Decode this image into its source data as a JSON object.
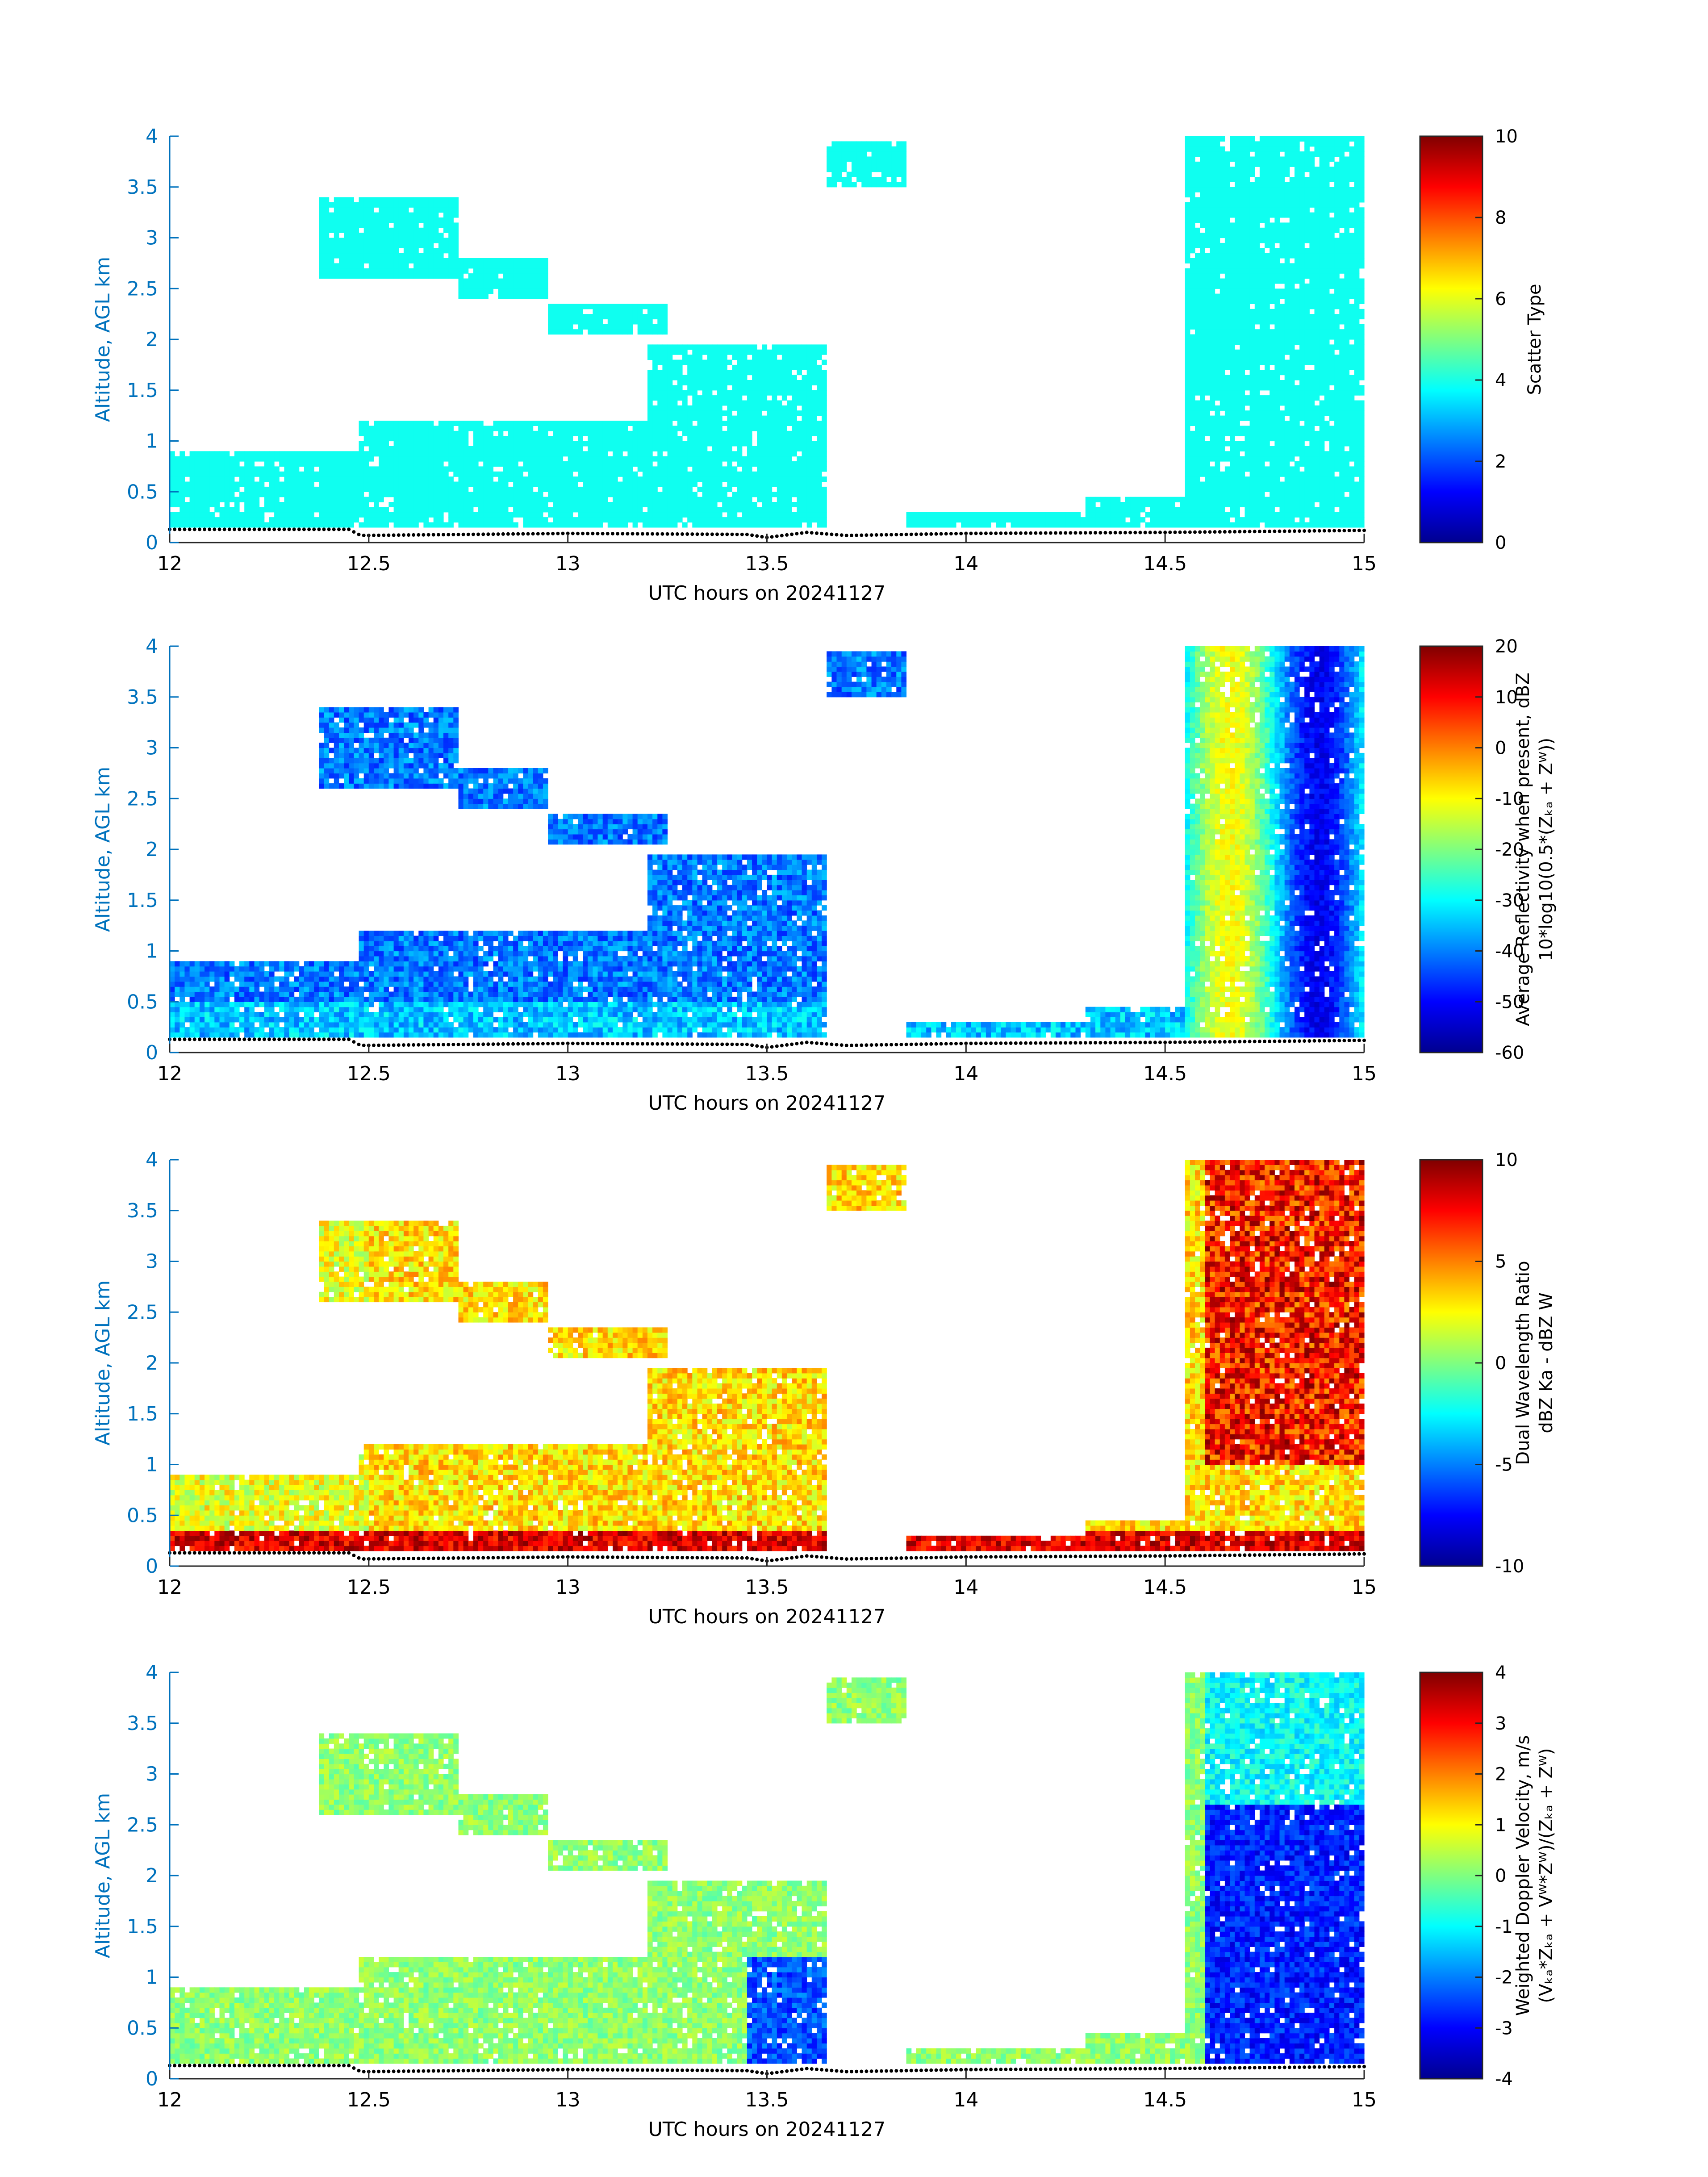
{
  "chart_data": [
    {
      "type": "heatmap",
      "xlabel": "UTC hours on 20241127",
      "ylabel": "Altitude, AGL km",
      "xlim": [
        12,
        15
      ],
      "ylim": [
        0,
        4
      ],
      "xticks": [
        "12",
        "12.5",
        "13",
        "13.5",
        "14",
        "14.5",
        "15"
      ],
      "yticks": [
        "0",
        "0.5",
        "1",
        "1.5",
        "2",
        "2.5",
        "3",
        "3.5",
        "4"
      ],
      "colorbar": {
        "label_lines": [
          "Scatter Type"
        ],
        "ticks": [
          "0",
          "2",
          "4",
          "6",
          "8",
          "10"
        ],
        "range": [
          0,
          10
        ],
        "colormap": "jet"
      },
      "field": "scatter_type",
      "dominant_value": 3.9
    },
    {
      "type": "heatmap",
      "xlabel": "UTC hours on 20241127",
      "ylabel": "Altitude, AGL km",
      "xlim": [
        12,
        15
      ],
      "ylim": [
        0,
        4
      ],
      "xticks": [
        "12",
        "12.5",
        "13",
        "13.5",
        "14",
        "14.5",
        "15"
      ],
      "yticks": [
        "0",
        "0.5",
        "1",
        "1.5",
        "2",
        "2.5",
        "3",
        "3.5",
        "4"
      ],
      "colorbar": {
        "label_lines": [
          "Average Reflectivity when present, dBZ",
          "10*log10(0.5*(Zₖₐ + Zᵂ))"
        ],
        "ticks": [
          "-60",
          "-50",
          "-40",
          "-30",
          "-20",
          "-10",
          "0",
          "10",
          "20"
        ],
        "range": [
          -60,
          20
        ],
        "colormap": "jet"
      },
      "field": "reflectivity"
    },
    {
      "type": "heatmap",
      "xlabel": "UTC hours on 20241127",
      "ylabel": "Altitude, AGL km",
      "xlim": [
        12,
        15
      ],
      "ylim": [
        0,
        4
      ],
      "xticks": [
        "12",
        "12.5",
        "13",
        "13.5",
        "14",
        "14.5",
        "15"
      ],
      "yticks": [
        "0",
        "0.5",
        "1",
        "1.5",
        "2",
        "2.5",
        "3",
        "3.5",
        "4"
      ],
      "colorbar": {
        "label_lines": [
          "Dual Wavelength Ratio",
          "dBZ Ka - dBZ W"
        ],
        "ticks": [
          "-10",
          "-5",
          "0",
          "5",
          "10"
        ],
        "range": [
          -10,
          10
        ],
        "colormap": "jet"
      },
      "field": "dwr"
    },
    {
      "type": "heatmap",
      "xlabel": "UTC hours on 20241127",
      "ylabel": "Altitude, AGL km",
      "xlim": [
        12,
        15
      ],
      "ylim": [
        0,
        4
      ],
      "xticks": [
        "12",
        "12.5",
        "13",
        "13.5",
        "14",
        "14.5",
        "15"
      ],
      "yticks": [
        "0",
        "0.5",
        "1",
        "1.5",
        "2",
        "2.5",
        "3",
        "3.5",
        "4"
      ],
      "colorbar": {
        "label_lines": [
          "Weighted Doppler Velocity, m/s",
          "(Vₖₐ*Zₖₐ + Vᵂ*Zᵂ)/(Zₖₐ + Zᵂ)"
        ],
        "ticks": [
          "-4",
          "-3",
          "-2",
          "-1",
          "0",
          "1",
          "2",
          "3",
          "4"
        ],
        "range": [
          -4,
          4
        ],
        "colormap": "jet"
      },
      "field": "doppler"
    }
  ],
  "echo_regions": [
    {
      "t0": 12.0,
      "t1": 12.48,
      "z0": 0.15,
      "z1": 0.9
    },
    {
      "t0": 12.48,
      "t1": 13.2,
      "z0": 0.15,
      "z1": 1.2
    },
    {
      "t0": 13.2,
      "t1": 13.65,
      "z0": 0.15,
      "z1": 1.95
    },
    {
      "t0": 12.38,
      "t1": 12.72,
      "z0": 2.6,
      "z1": 3.4
    },
    {
      "t0": 12.72,
      "t1": 12.95,
      "z0": 2.4,
      "z1": 2.8
    },
    {
      "t0": 12.95,
      "t1": 13.25,
      "z0": 2.05,
      "z1": 2.35
    },
    {
      "t0": 13.65,
      "t1": 13.85,
      "z0": 3.5,
      "z1": 3.95
    },
    {
      "t0": 13.85,
      "t1": 14.3,
      "z0": 0.15,
      "z1": 0.28
    },
    {
      "t0": 14.3,
      "t1": 14.55,
      "z0": 0.15,
      "z1": 0.45
    },
    {
      "t0": 14.55,
      "t1": 15.0,
      "z0": 0.15,
      "z1": 4.0
    }
  ],
  "surface_line": [
    {
      "t": 12.0,
      "z": 0.13
    },
    {
      "t": 12.45,
      "z": 0.13
    },
    {
      "t": 12.48,
      "z": 0.07
    },
    {
      "t": 13.0,
      "z": 0.09
    },
    {
      "t": 13.45,
      "z": 0.08
    },
    {
      "t": 13.5,
      "z": 0.05
    },
    {
      "t": 13.6,
      "z": 0.1
    },
    {
      "t": 13.7,
      "z": 0.07
    },
    {
      "t": 14.0,
      "z": 0.09
    },
    {
      "t": 14.5,
      "z": 0.1
    },
    {
      "t": 15.0,
      "z": 0.12
    }
  ]
}
